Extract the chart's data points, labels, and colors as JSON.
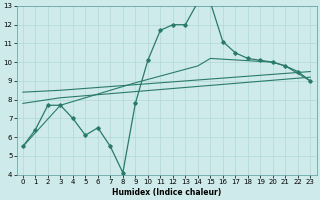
{
  "xlabel": "Humidex (Indice chaleur)",
  "xlim": [
    -0.5,
    23.5
  ],
  "ylim": [
    4,
    13
  ],
  "xticks": [
    0,
    1,
    2,
    3,
    4,
    5,
    6,
    7,
    8,
    9,
    10,
    11,
    12,
    13,
    14,
    15,
    16,
    17,
    18,
    19,
    20,
    21,
    22,
    23
  ],
  "yticks": [
    4,
    5,
    6,
    7,
    8,
    9,
    10,
    11,
    12,
    13
  ],
  "bg_color": "#ceeaea",
  "grid_color": "#b0d8d8",
  "line_color": "#2a7a6a",
  "line1_x": [
    0,
    1,
    2,
    3,
    4,
    5,
    6,
    7,
    8,
    9,
    10,
    11,
    12,
    13,
    14,
    15,
    16,
    17,
    18,
    19,
    20,
    21,
    22,
    23
  ],
  "line1_y": [
    5.5,
    6.4,
    7.7,
    7.7,
    7.0,
    6.1,
    6.5,
    5.5,
    4.1,
    7.8,
    10.1,
    11.7,
    12.0,
    12.0,
    13.2,
    13.2,
    11.1,
    10.5,
    10.2,
    10.1,
    10.0,
    9.8,
    9.5,
    9.0
  ],
  "line2_x": [
    0,
    3,
    9,
    14,
    15,
    20,
    21,
    23
  ],
  "line2_y": [
    5.5,
    7.7,
    8.9,
    9.8,
    10.2,
    10.0,
    9.8,
    9.0
  ],
  "line3_x": [
    0,
    3,
    23
  ],
  "line3_y": [
    7.8,
    8.1,
    9.2
  ],
  "line4_x": [
    0,
    3,
    23
  ],
  "line4_y": [
    8.4,
    8.5,
    9.5
  ]
}
